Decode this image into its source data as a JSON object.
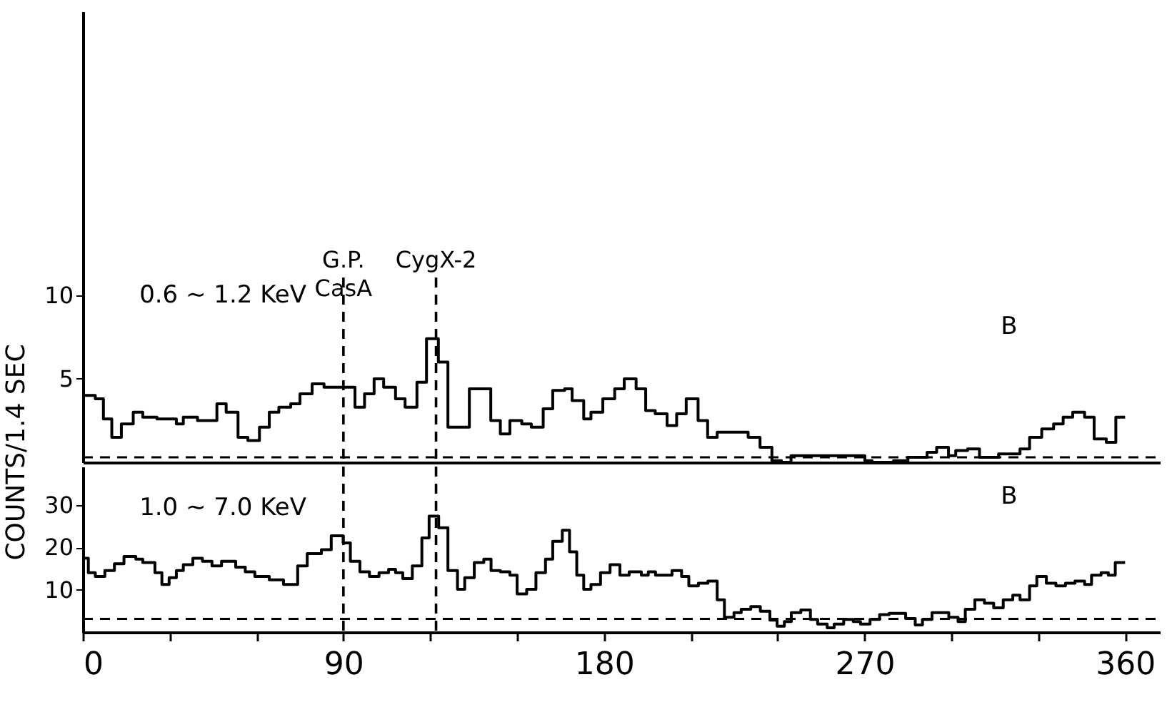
{
  "chart_data": [
    {
      "type": "step",
      "xlim": [
        0,
        372
      ],
      "ylim": [
        0,
        27
      ],
      "yticks": [
        5,
        10
      ],
      "tick_labels": "y",
      "grid": false,
      "line_style": "solid",
      "x": [
        0,
        4.3,
        7.1,
        10,
        13.3,
        17.4,
        20.7,
        25.6,
        32.3,
        34.7,
        39.6,
        46.3,
        49.5,
        53.6,
        57,
        61,
        64.4,
        67.7,
        71.8,
        75,
        79.2,
        83.3,
        94,
        97.3,
        100.6,
        103.9,
        108,
        111.3,
        115.4,
        118.7,
        122.8,
        126.1,
        133.5,
        140.9,
        144.2,
        147.5,
        151.6,
        154.9,
        159,
        162.3,
        166.4,
        169,
        173,
        175.5,
        179.6,
        183.7,
        187,
        191.1,
        194.4,
        197.7,
        201.8,
        205.1,
        208.4,
        212.5,
        215.8,
        219.1,
        229.8,
        233.9,
        238,
        241.3,
        244.6,
        270.1,
        272.6,
        275,
        280,
        285,
        291.6,
        294.9,
        299,
        301.5,
        305.6,
        309.7,
        316.3,
        323.7,
        327,
        331.2,
        335.3,
        338.6,
        341.9,
        346,
        349.3,
        353.5,
        356.8,
        360
      ],
      "series": [
        {
          "color": "#000000",
          "values": [
            4.0,
            3.8,
            2.6,
            1.5,
            2.3,
            3.0,
            2.7,
            2.6,
            2.3,
            2.7,
            2.5,
            3.5,
            3.0,
            1.5,
            1.3,
            2.1,
            3.0,
            3.3,
            3.5,
            4.1,
            4.7,
            4.5,
            3.3,
            4.1,
            5.0,
            4.5,
            3.8,
            3.3,
            4.8,
            7.4,
            6.0,
            2.1,
            4.4,
            2.5,
            1.7,
            2.5,
            2.3,
            2.1,
            3.2,
            4.3,
            4.4,
            3.7,
            2.6,
            3.0,
            3.8,
            4.4,
            5.0,
            4.4,
            3.1,
            2.9,
            2.2,
            2.9,
            3.8,
            2.5,
            1.5,
            1.8,
            1.5,
            0.9,
            0.1,
            0.0,
            0.4,
            0.1,
            0.0,
            0.0,
            0.1,
            0.3,
            0.6,
            0.9,
            0.4,
            0.7,
            0.8,
            0.3,
            0.5,
            0.8,
            1.5,
            2.0,
            2.3,
            2.7,
            3.0,
            2.7,
            1.4,
            1.2,
            2.7,
            2.7
          ]
        }
      ],
      "ref_lines": [
        {
          "axis": "x",
          "value": 90,
          "label": "G.P. CasA",
          "line_style": "dashed",
          "color": "#000000"
        },
        {
          "axis": "x",
          "value": 122,
          "label": "CygX-2",
          "line_style": "dashed",
          "color": "#000000"
        },
        {
          "axis": "y",
          "value": 0.3,
          "line_style": "dashed",
          "color": "#000000"
        }
      ],
      "annotations": [
        "0.6 ~ 1.2 KeV",
        "B"
      ]
    },
    {
      "type": "step",
      "xlim": [
        0,
        372
      ],
      "ylim": [
        0,
        39
      ],
      "yticks": [
        10,
        20,
        30
      ],
      "ylabel": "COUNTS/1.4 SEC",
      "grid": false,
      "line_style": "solid",
      "xticks": [
        0,
        {
          "value": 30,
          "label": null
        },
        {
          "value": 60,
          "label": null
        },
        90,
        {
          "value": 120,
          "label": null
        },
        {
          "value": 150,
          "label": null
        },
        180,
        {
          "value": 210,
          "label": null
        },
        {
          "value": 240,
          "label": null
        },
        270,
        {
          "value": 300,
          "label": null
        },
        {
          "value": 330,
          "label": null
        },
        360
      ],
      "x": [
        0,
        1.9,
        4.3,
        7.6,
        10.9,
        14.2,
        18.3,
        20.7,
        24.9,
        27.3,
        29.8,
        32.3,
        34.7,
        38,
        41.3,
        44.6,
        47.9,
        52.8,
        56.1,
        59.4,
        64.4,
        69.3,
        74.2,
        77.5,
        82.4,
        85.8,
        89.9,
        92.4,
        95.7,
        99,
        102.3,
        105.6,
        108,
        110.5,
        113.8,
        117.1,
        119.6,
        122.9,
        126.1,
        129.4,
        131.9,
        135.2,
        138.5,
        141,
        144.2,
        147.5,
        150,
        153.3,
        156.5,
        159.8,
        162.3,
        165.6,
        168.1,
        170.6,
        173,
        175.5,
        178.8,
        182.1,
        185.5,
        188.7,
        192.9,
        195.3,
        197.8,
        203.5,
        206.8,
        209.3,
        212.6,
        215.9,
        219.1,
        221.6,
        224.9,
        227.4,
        230.7,
        234,
        237.3,
        239.8,
        242.3,
        244.7,
        248,
        251.3,
        253.8,
        257.1,
        259.5,
        262.8,
        266.1,
        268.6,
        271.9,
        275.2,
        278.5,
        284.2,
        287.5,
        290,
        293.3,
        299.1,
        302.3,
        304.8,
        308.1,
        311.4,
        314.6,
        317.9,
        321.2,
        323.7,
        327,
        329.5,
        332.8,
        336.1,
        339.4,
        342.7,
        346,
        348.4,
        351.7,
        354.2,
        356.6,
        360
      ],
      "series": [
        {
          "color": "#000000",
          "values": [
            17.4,
            14.0,
            13.1,
            14.5,
            16.1,
            17.8,
            17.2,
            16.4,
            14.0,
            11.2,
            12.8,
            14.5,
            15.9,
            17.4,
            16.7,
            15.6,
            16.7,
            15.3,
            14.2,
            13.1,
            12.3,
            11.2,
            15.6,
            18.5,
            19.4,
            22.7,
            21.0,
            16.7,
            14.2,
            13.1,
            14.0,
            14.8,
            14.0,
            12.6,
            15.6,
            22.2,
            27.3,
            24.6,
            14.5,
            10.1,
            12.8,
            16.4,
            17.2,
            14.5,
            14.2,
            13.4,
            9.0,
            10.1,
            14.0,
            17.2,
            21.4,
            24.0,
            18.9,
            13.4,
            10.1,
            11.2,
            14.0,
            15.9,
            13.4,
            14.2,
            13.4,
            14.2,
            13.4,
            14.5,
            13.1,
            10.9,
            11.5,
            12.0,
            7.6,
            3.5,
            4.6,
            5.4,
            6.0,
            4.9,
            2.8,
            1.4,
            2.5,
            4.6,
            5.2,
            3.0,
            1.9,
            1.0,
            1.9,
            3.0,
            2.5,
            1.9,
            3.0,
            4.1,
            4.4,
            3.2,
            1.7,
            3.0,
            4.6,
            3.5,
            2.5,
            5.4,
            7.6,
            6.8,
            5.7,
            7.6,
            8.7,
            7.6,
            10.9,
            13.1,
            11.5,
            10.9,
            11.5,
            12.0,
            11.2,
            13.4,
            14.0,
            13.4,
            16.4,
            16.4
          ]
        }
      ],
      "ref_lines": [
        {
          "axis": "x",
          "value": 90,
          "line_style": "dashed",
          "color": "#000000"
        },
        {
          "axis": "x",
          "value": 122,
          "line_style": "dashed",
          "color": "#000000"
        },
        {
          "axis": "y",
          "value": 3.1,
          "line_style": "dashed",
          "color": "#000000"
        }
      ],
      "annotations": [
        "1.0 ~ 7.0 KeV",
        "B"
      ]
    }
  ]
}
